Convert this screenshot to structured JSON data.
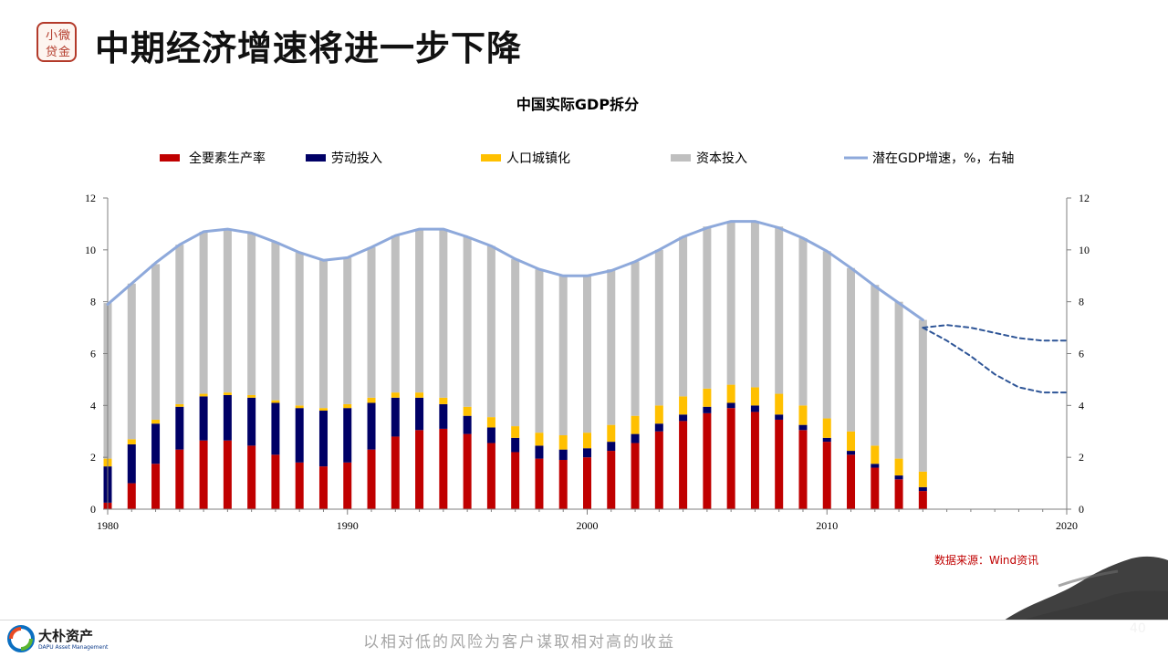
{
  "slide": {
    "title": "中期经济增速将进一步下降",
    "source": "数据来源：Wind资讯",
    "page_number": "40",
    "logo_chars": [
      "小",
      "微",
      "贷",
      "金"
    ],
    "footer_brand": "大朴资产",
    "footer_brand_sub": "DAPU Asset Management",
    "footer_slogan": "以相对低的风险为客户谋取相对高的收益"
  },
  "chart_data": {
    "type": "bar",
    "title": "中国实际GDP拆分",
    "stacked": true,
    "x": [
      1980,
      1981,
      1982,
      1983,
      1984,
      1985,
      1986,
      1987,
      1988,
      1989,
      1990,
      1991,
      1992,
      1993,
      1994,
      1995,
      1996,
      1997,
      1998,
      1999,
      2000,
      2001,
      2002,
      2003,
      2004,
      2005,
      2006,
      2007,
      2008,
      2009,
      2010,
      2011,
      2012,
      2013,
      2014
    ],
    "xlim": [
      1980,
      2020
    ],
    "x_ticks": [
      1980,
      1990,
      2000,
      2010,
      2020
    ],
    "ylim": [
      0,
      12
    ],
    "y_ticks": [
      0,
      2,
      4,
      6,
      8,
      10,
      12
    ],
    "y2lim": [
      0,
      12
    ],
    "y2_ticks": [
      0,
      2,
      4,
      6,
      8,
      10,
      12
    ],
    "legend_position": "top",
    "grid": false,
    "series": [
      {
        "name": "全要素生产率",
        "color": "#c00000",
        "values": [
          0.25,
          1.0,
          1.75,
          2.3,
          2.65,
          2.65,
          2.45,
          2.1,
          1.8,
          1.65,
          1.8,
          2.3,
          2.8,
          3.05,
          3.1,
          2.9,
          2.55,
          2.2,
          1.95,
          1.9,
          2.0,
          2.25,
          2.55,
          3.0,
          3.4,
          3.7,
          3.9,
          3.75,
          3.45,
          3.05,
          2.6,
          2.1,
          1.6,
          1.15,
          0.7
        ]
      },
      {
        "name": "劳动投入",
        "color": "#000066",
        "values": [
          1.4,
          1.5,
          1.55,
          1.65,
          1.7,
          1.75,
          1.85,
          2.0,
          2.1,
          2.15,
          2.1,
          1.8,
          1.5,
          1.25,
          0.95,
          0.7,
          0.6,
          0.55,
          0.5,
          0.4,
          0.35,
          0.35,
          0.35,
          0.3,
          0.25,
          0.25,
          0.2,
          0.25,
          0.2,
          0.2,
          0.15,
          0.15,
          0.15,
          0.15,
          0.15
        ]
      },
      {
        "name": "人口城镇化",
        "color": "#ffc000",
        "values": [
          0.3,
          0.2,
          0.15,
          0.1,
          0.1,
          0.1,
          0.1,
          0.1,
          0.1,
          0.1,
          0.15,
          0.2,
          0.2,
          0.2,
          0.25,
          0.35,
          0.4,
          0.45,
          0.5,
          0.55,
          0.6,
          0.65,
          0.7,
          0.7,
          0.7,
          0.7,
          0.7,
          0.7,
          0.8,
          0.75,
          0.75,
          0.75,
          0.7,
          0.65,
          0.6
        ]
      },
      {
        "name": "资本投入",
        "color": "#bfbfbf",
        "values": [
          6.0,
          6.0,
          6.0,
          6.15,
          6.25,
          6.3,
          6.25,
          6.1,
          5.9,
          5.7,
          5.65,
          5.8,
          6.05,
          6.3,
          6.5,
          6.55,
          6.6,
          6.45,
          6.3,
          6.15,
          6.05,
          6.0,
          5.95,
          6.0,
          6.15,
          6.25,
          6.3,
          6.4,
          6.45,
          6.45,
          6.45,
          6.3,
          6.2,
          6.05,
          5.85
        ]
      }
    ],
    "line_series": [
      {
        "name": "潜在GDP增速，%，右轴",
        "color": "#8ea9db",
        "axis": "right",
        "x": [
          1980,
          1981,
          1982,
          1983,
          1984,
          1985,
          1986,
          1987,
          1988,
          1989,
          1990,
          1991,
          1992,
          1993,
          1994,
          1995,
          1996,
          1997,
          1998,
          1999,
          2000,
          2001,
          2002,
          2003,
          2004,
          2005,
          2006,
          2007,
          2008,
          2009,
          2010,
          2011,
          2012,
          2013,
          2014
        ],
        "values": [
          7.9,
          8.7,
          9.5,
          10.2,
          10.7,
          10.8,
          10.65,
          10.3,
          9.9,
          9.6,
          9.7,
          10.1,
          10.55,
          10.8,
          10.8,
          10.5,
          10.15,
          9.65,
          9.25,
          9.0,
          9.0,
          9.2,
          9.55,
          10.0,
          10.5,
          10.85,
          11.1,
          11.1,
          10.85,
          10.45,
          9.95,
          9.3,
          8.6,
          7.95,
          7.3
        ]
      },
      {
        "name": "",
        "color": "#2e5597",
        "style": "dashed",
        "x": [
          2014,
          2015,
          2016,
          2017,
          2018,
          2019,
          2020
        ],
        "values": [
          7.0,
          7.1,
          7.0,
          6.8,
          6.6,
          6.5,
          6.5
        ]
      },
      {
        "name": "",
        "color": "#2e5597",
        "style": "dashed",
        "x": [
          2014,
          2015,
          2016,
          2017,
          2018,
          2019,
          2020
        ],
        "values": [
          7.0,
          6.5,
          5.9,
          5.2,
          4.7,
          4.5,
          4.5
        ]
      }
    ]
  }
}
